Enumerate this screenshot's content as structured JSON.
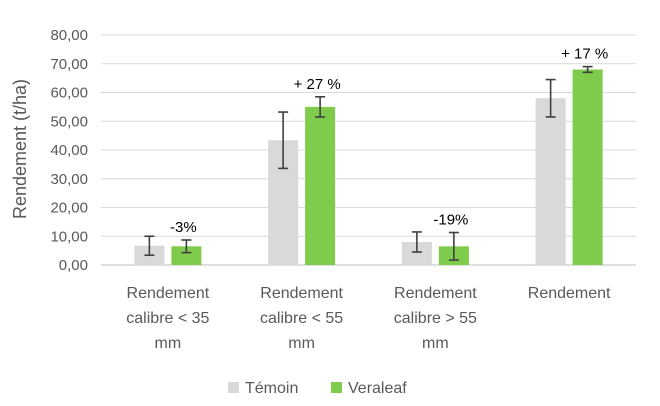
{
  "chart_data": {
    "type": "bar",
    "ylabel": "Rendement (t/ha)",
    "ylim": [
      0,
      80
    ],
    "ytick_step": 10,
    "ytick_labels": [
      "0,00",
      "10,00",
      "20,00",
      "30,00",
      "40,00",
      "50,00",
      "60,00",
      "70,00",
      "80,00"
    ],
    "grid": true,
    "legend_position": "bottom",
    "categories": [
      [
        "Rendement",
        "calibre < 35",
        "mm"
      ],
      [
        "Rendement",
        "calibre < 55",
        "mm"
      ],
      [
        "Rendement",
        "calibre > 55",
        "mm"
      ],
      [
        "Rendement"
      ]
    ],
    "series": [
      {
        "name": "Témoin",
        "color": "#d9d9d9",
        "values": [
          6.7,
          43.4,
          8.0,
          58.0
        ],
        "error": [
          3.3,
          9.8,
          3.5,
          6.5
        ]
      },
      {
        "name": "Veraleaf",
        "color": "#7fcc4c",
        "values": [
          6.5,
          55.0,
          6.5,
          68.0
        ],
        "error": [
          2.2,
          3.5,
          4.8,
          1.0
        ]
      }
    ],
    "annotations": [
      "-3%",
      "+ 27 %",
      "-19%",
      "+ 17 %"
    ]
  }
}
